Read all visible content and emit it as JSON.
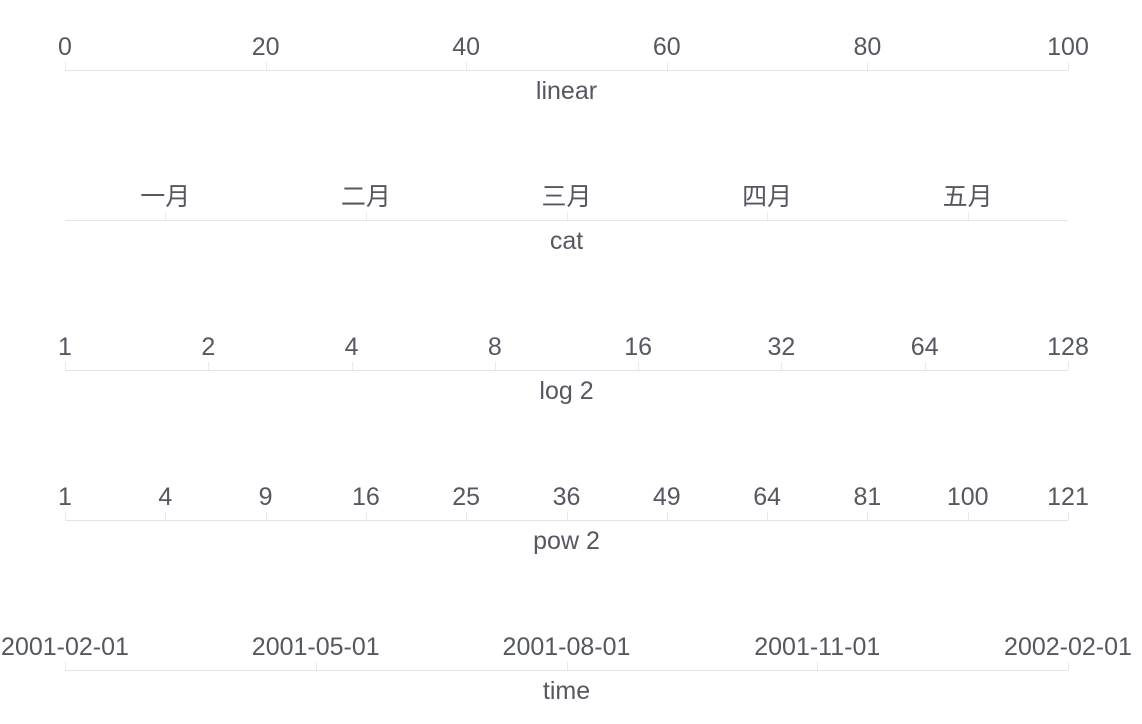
{
  "figure": {
    "background": "#ffffff",
    "colors": {
      "axis_line": "#DFE5F0",
      "axis_tick": "#E4E9F3",
      "label": "#555860"
    }
  },
  "chart_data": {
    "type": "axis-showcase",
    "grid": false,
    "legend": false,
    "axes": [
      {
        "id": "linear",
        "scale": "linear",
        "name": "linear",
        "range": [
          0,
          100
        ],
        "labels": [
          "0",
          "20",
          "40",
          "60",
          "80",
          "100"
        ],
        "fractions": [
          0,
          0.2,
          0.4,
          0.6,
          0.8,
          1
        ]
      },
      {
        "id": "cat",
        "scale": "category",
        "name": "cat",
        "labels": [
          "一月",
          "二月",
          "三月",
          "四月",
          "五月"
        ],
        "fractions": [
          0.1,
          0.3,
          0.5,
          0.7,
          0.9
        ]
      },
      {
        "id": "log2",
        "scale": "log",
        "name": "log 2",
        "range": [
          1,
          128
        ],
        "labels": [
          "1",
          "2",
          "4",
          "8",
          "16",
          "32",
          "64",
          "128"
        ],
        "fractions": [
          0,
          0.142857,
          0.285714,
          0.428571,
          0.571429,
          0.714286,
          0.857143,
          1
        ]
      },
      {
        "id": "pow2",
        "scale": "pow",
        "name": "pow 2",
        "range": [
          1,
          121
        ],
        "labels": [
          "1",
          "4",
          "9",
          "16",
          "25",
          "36",
          "49",
          "64",
          "81",
          "100",
          "121"
        ],
        "fractions": [
          0,
          0.1,
          0.2,
          0.3,
          0.4,
          0.5,
          0.6,
          0.7,
          0.8,
          0.9,
          1
        ]
      },
      {
        "id": "time",
        "scale": "time",
        "name": "time",
        "labels": [
          "2001-02-01",
          "2001-05-01",
          "2001-08-01",
          "2001-11-01",
          "2002-02-01"
        ],
        "fractions": [
          0,
          0.25,
          0.5,
          0.75,
          1
        ]
      }
    ]
  }
}
